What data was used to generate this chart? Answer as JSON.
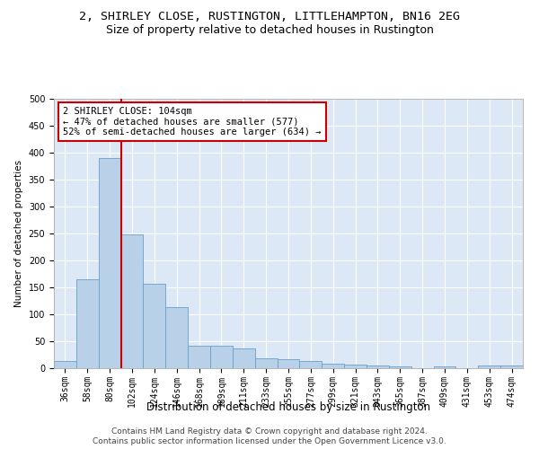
{
  "title": "2, SHIRLEY CLOSE, RUSTINGTON, LITTLEHAMPTON, BN16 2EG",
  "subtitle": "Size of property relative to detached houses in Rustington",
  "xlabel": "Distribution of detached houses by size in Rustington",
  "ylabel": "Number of detached properties",
  "categories": [
    "36sqm",
    "58sqm",
    "80sqm",
    "102sqm",
    "124sqm",
    "146sqm",
    "168sqm",
    "189sqm",
    "211sqm",
    "233sqm",
    "255sqm",
    "277sqm",
    "299sqm",
    "321sqm",
    "343sqm",
    "365sqm",
    "387sqm",
    "409sqm",
    "431sqm",
    "453sqm",
    "474sqm"
  ],
  "values": [
    13,
    165,
    390,
    248,
    156,
    114,
    42,
    41,
    37,
    19,
    17,
    14,
    9,
    7,
    5,
    3,
    0,
    4,
    0,
    5,
    5
  ],
  "bar_color": "#b8d0e8",
  "bar_edge_color": "#6aa0c8",
  "background_color": "#dce8f5",
  "grid_color": "#ffffff",
  "vline_color": "#cc0000",
  "annotation_text": "2 SHIRLEY CLOSE: 104sqm\n← 47% of detached houses are smaller (577)\n52% of semi-detached houses are larger (634) →",
  "annotation_box_color": "#ffffff",
  "annotation_box_edge": "#cc0000",
  "footer_line1": "Contains HM Land Registry data © Crown copyright and database right 2024.",
  "footer_line2": "Contains public sector information licensed under the Open Government Licence v3.0.",
  "ylim": [
    0,
    500
  ],
  "yticks": [
    0,
    50,
    100,
    150,
    200,
    250,
    300,
    350,
    400,
    450,
    500
  ],
  "title_fontsize": 9.5,
  "subtitle_fontsize": 9,
  "xlabel_fontsize": 8.5,
  "ylabel_fontsize": 7.5,
  "tick_fontsize": 7,
  "annotation_fontsize": 7.5,
  "footer_fontsize": 6.5
}
